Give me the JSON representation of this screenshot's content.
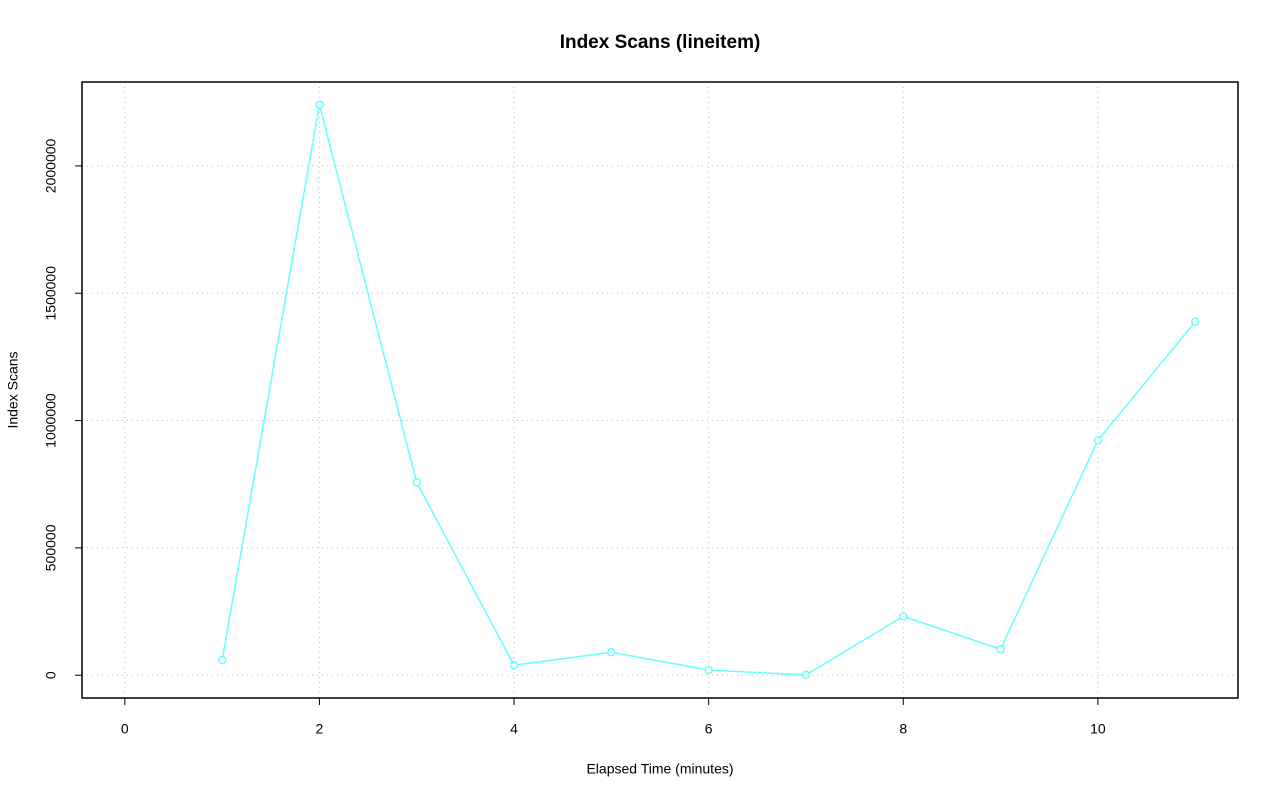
{
  "chart_data": {
    "type": "line",
    "title": "Index Scans (lineitem)",
    "x_label": "Elapsed Time (minutes)",
    "y_label": "Index Scans",
    "x": [
      1,
      2,
      3,
      4,
      5,
      6,
      7,
      8,
      9,
      10,
      11
    ],
    "series": [
      {
        "color": "#66ffff",
        "values": [
          59000,
          2240000,
          757000,
          39000,
          90000,
          20000,
          1000,
          231000,
          102000,
          922000,
          1388000
        ]
      }
    ],
    "xlim": [
      -0.44,
      11.44
    ],
    "ylim": [
      -89600,
      2329600
    ],
    "xticks": [
      0,
      2,
      4,
      6,
      8,
      10
    ],
    "yticks": [
      0,
      500000,
      1000000,
      1500000,
      2000000
    ],
    "grid": true
  }
}
